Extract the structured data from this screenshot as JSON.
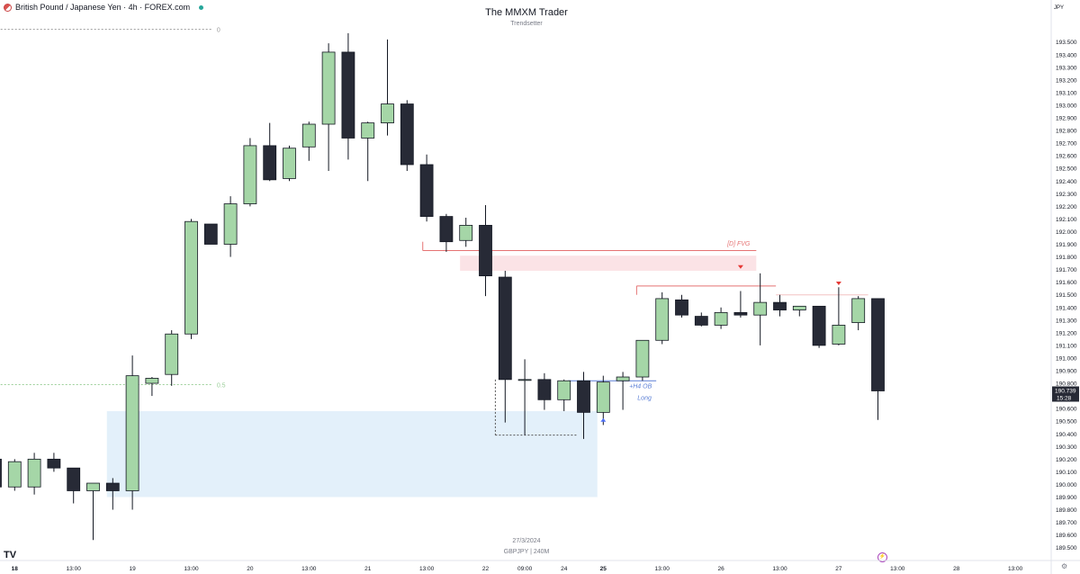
{
  "header": {
    "symbol_title": "British Pound / Japanese Yen · 4h · FOREX.com",
    "logo_icon": "flag-icon",
    "status_icon": "live-dot-icon"
  },
  "overlay": {
    "title": "The MMXM Trader",
    "subtitle": "Trendsetter",
    "watermark_date": "27/3/2024",
    "watermark_symbol": "GBPJPY | 240M",
    "brand": "TV"
  },
  "axis": {
    "currency": "JPY",
    "settings_icon": "gear-icon",
    "alert_icon": "alert-icon"
  },
  "chart_data": {
    "type": "candlestick",
    "y_ticks": [
      189.5,
      189.6,
      189.7,
      189.8,
      189.9,
      190.0,
      190.1,
      190.2,
      190.3,
      190.4,
      190.5,
      190.6,
      190.7,
      190.8,
      190.9,
      191.0,
      191.1,
      191.2,
      191.3,
      191.4,
      191.5,
      191.6,
      191.7,
      191.8,
      191.9,
      192.0,
      192.1,
      192.2,
      192.3,
      192.4,
      192.5,
      192.6,
      192.7,
      192.8,
      192.9,
      193.0,
      193.1,
      193.2,
      193.3,
      193.4,
      193.5
    ],
    "y_tick_labels": [
      "189.500",
      "189.600",
      "189.700",
      "189.800",
      "189.900",
      "190.000",
      "190.100",
      "190.200",
      "190.300",
      "190.400",
      "190.500",
      "190.600",
      "190.700",
      "190.800",
      "190.900",
      "191.000",
      "191.100",
      "191.200",
      "191.300",
      "191.400",
      "191.500",
      "191.600",
      "191.700",
      "191.800",
      "191.900",
      "192.000",
      "192.100",
      "192.200",
      "192.300",
      "192.400",
      "192.500",
      "192.600",
      "192.700",
      "192.800",
      "192.900",
      "193.000",
      "193.100",
      "193.200",
      "193.300",
      "193.400",
      "193.500"
    ],
    "x_labels": [
      {
        "bar": 1,
        "text": "18",
        "bold": true
      },
      {
        "bar": 4,
        "text": "13:00",
        "bold": false
      },
      {
        "bar": 7,
        "text": "19",
        "bold": false
      },
      {
        "bar": 10,
        "text": "13:00",
        "bold": false
      },
      {
        "bar": 13,
        "text": "20",
        "bold": false
      },
      {
        "bar": 16,
        "text": "13:00",
        "bold": false
      },
      {
        "bar": 19,
        "text": "21",
        "bold": false
      },
      {
        "bar": 22,
        "text": "13:00",
        "bold": false
      },
      {
        "bar": 25,
        "text": "22",
        "bold": false
      },
      {
        "bar": 27,
        "text": "09:00",
        "bold": false
      },
      {
        "bar": 29,
        "text": "24",
        "bold": false
      },
      {
        "bar": 31,
        "text": "25",
        "bold": true
      },
      {
        "bar": 34,
        "text": "13:00",
        "bold": false
      },
      {
        "bar": 37,
        "text": "26",
        "bold": false
      },
      {
        "bar": 40,
        "text": "13:00",
        "bold": false
      },
      {
        "bar": 43,
        "text": "27",
        "bold": false
      },
      {
        "bar": 46,
        "text": "13:00",
        "bold": false
      },
      {
        "bar": 49,
        "text": "28",
        "bold": false
      },
      {
        "bar": 52,
        "text": "13:00",
        "bold": false
      }
    ],
    "candles": [
      {
        "o": 190.2,
        "h": 190.2,
        "l": 189.95,
        "c": 189.98
      },
      {
        "o": 189.98,
        "h": 190.2,
        "l": 189.95,
        "c": 190.18
      },
      {
        "o": 189.98,
        "h": 190.25,
        "l": 189.92,
        "c": 190.2
      },
      {
        "o": 190.2,
        "h": 190.25,
        "l": 190.1,
        "c": 190.13
      },
      {
        "o": 190.13,
        "h": 190.13,
        "l": 189.85,
        "c": 189.95
      },
      {
        "o": 189.95,
        "h": 190.0,
        "l": 189.56,
        "c": 190.01
      },
      {
        "o": 190.01,
        "h": 190.05,
        "l": 189.8,
        "c": 189.95
      },
      {
        "o": 189.95,
        "h": 191.02,
        "l": 189.8,
        "c": 190.86
      },
      {
        "o": 190.8,
        "h": 190.85,
        "l": 190.7,
        "c": 190.84
      },
      {
        "o": 190.87,
        "h": 191.22,
        "l": 190.78,
        "c": 191.19
      },
      {
        "o": 191.19,
        "h": 192.1,
        "l": 191.15,
        "c": 192.08
      },
      {
        "o": 192.06,
        "h": 192.06,
        "l": 191.9,
        "c": 191.9
      },
      {
        "o": 191.9,
        "h": 192.28,
        "l": 191.8,
        "c": 192.22
      },
      {
        "o": 192.22,
        "h": 192.74,
        "l": 192.2,
        "c": 192.68
      },
      {
        "o": 192.68,
        "h": 192.86,
        "l": 192.4,
        "c": 192.41
      },
      {
        "o": 192.42,
        "h": 192.68,
        "l": 192.4,
        "c": 192.66
      },
      {
        "o": 192.67,
        "h": 192.87,
        "l": 192.56,
        "c": 192.85
      },
      {
        "o": 192.85,
        "h": 193.49,
        "l": 192.48,
        "c": 193.42
      },
      {
        "o": 193.42,
        "h": 193.57,
        "l": 192.57,
        "c": 192.74
      },
      {
        "o": 192.74,
        "h": 192.87,
        "l": 192.4,
        "c": 192.86
      },
      {
        "o": 192.86,
        "h": 193.52,
        "l": 192.76,
        "c": 193.01
      },
      {
        "o": 193.01,
        "h": 193.04,
        "l": 192.48,
        "c": 192.53
      },
      {
        "o": 192.53,
        "h": 192.61,
        "l": 192.08,
        "c": 192.12
      },
      {
        "o": 192.12,
        "h": 192.14,
        "l": 191.84,
        "c": 191.92
      },
      {
        "o": 191.93,
        "h": 192.11,
        "l": 191.88,
        "c": 192.05
      },
      {
        "o": 192.05,
        "h": 192.21,
        "l": 191.49,
        "c": 191.65
      },
      {
        "o": 191.64,
        "h": 191.69,
        "l": 190.49,
        "c": 190.83
      },
      {
        "o": 190.83,
        "h": 190.99,
        "l": 190.39,
        "c": 190.83
      },
      {
        "o": 190.83,
        "h": 190.88,
        "l": 190.59,
        "c": 190.67
      },
      {
        "o": 190.67,
        "h": 190.83,
        "l": 190.58,
        "c": 190.82
      },
      {
        "o": 190.82,
        "h": 190.89,
        "l": 190.36,
        "c": 190.57
      },
      {
        "o": 190.57,
        "h": 190.86,
        "l": 190.47,
        "c": 190.81
      },
      {
        "o": 190.82,
        "h": 190.89,
        "l": 190.59,
        "c": 190.85
      },
      {
        "o": 190.85,
        "h": 191.14,
        "l": 190.82,
        "c": 191.14
      },
      {
        "o": 191.14,
        "h": 191.52,
        "l": 191.11,
        "c": 191.47
      },
      {
        "o": 191.46,
        "h": 191.5,
        "l": 191.32,
        "c": 191.34
      },
      {
        "o": 191.33,
        "h": 191.36,
        "l": 191.25,
        "c": 191.26
      },
      {
        "o": 191.26,
        "h": 191.4,
        "l": 191.23,
        "c": 191.36
      },
      {
        "o": 191.36,
        "h": 191.53,
        "l": 191.32,
        "c": 191.34
      },
      {
        "o": 191.34,
        "h": 191.67,
        "l": 191.1,
        "c": 191.44
      },
      {
        "o": 191.44,
        "h": 191.5,
        "l": 191.33,
        "c": 191.38
      },
      {
        "o": 191.38,
        "h": 191.4,
        "l": 191.33,
        "c": 191.41
      },
      {
        "o": 191.41,
        "h": 191.41,
        "l": 191.08,
        "c": 191.1
      },
      {
        "o": 191.11,
        "h": 191.56,
        "l": 191.1,
        "c": 191.26
      },
      {
        "o": 191.28,
        "h": 191.49,
        "l": 191.22,
        "c": 191.47
      },
      {
        "o": 191.47,
        "h": 191.47,
        "l": 190.51,
        "c": 190.74
      }
    ],
    "zones": [
      {
        "name": "demand-zone",
        "bar_from": 5.7,
        "bar_to": 30.7,
        "y_low": 189.9,
        "y_high": 190.58,
        "color": "#e3f0fa"
      },
      {
        "name": "fvg-zone",
        "bar_from": 23.7,
        "bar_to": 38.8,
        "y_low": 191.69,
        "y_high": 191.81,
        "color": "#fbe3e6"
      }
    ],
    "lines": [
      {
        "name": "fvg-line",
        "bar_from": 21.8,
        "bar_to": 38.8,
        "y": 191.85,
        "color": "#e57373",
        "dash": false
      },
      {
        "name": "swing-high-line",
        "bar_from": 32.7,
        "bar_to": 39.8,
        "y": 191.57,
        "color": "#e57373",
        "dash": false
      },
      {
        "name": "swing-high-line-2",
        "bar_from": 39.8,
        "bar_to": 44.5,
        "y": 191.5,
        "color": "#f4c2c2",
        "dash": false
      },
      {
        "name": "ob-line",
        "bar_from": 29.2,
        "bar_to": 33.7,
        "y": 190.82,
        "color": "#5b7fd6",
        "dash": false
      },
      {
        "name": "low-dotted-line",
        "bar_from": 25.5,
        "bar_to": 29.7,
        "y": 190.39,
        "color": "#555555",
        "dash": true
      },
      {
        "name": "fib-0-line",
        "bar_from": -1,
        "bar_to": 11.1,
        "y": 193.6,
        "color": "#999999",
        "dash": true
      },
      {
        "name": "fib-05-line",
        "bar_from": -1,
        "bar_to": 11.1,
        "y": 190.79,
        "color": "#9ccf9a",
        "dash": true
      }
    ],
    "annotations": [
      {
        "name": "fvg-label",
        "text": "[D] FVG",
        "bar": 37.9,
        "y": 191.89,
        "color": "#e57373"
      },
      {
        "name": "ob-label",
        "text": "+H4 OB",
        "bar": 32.9,
        "y": 190.76,
        "color": "#5b7fd6"
      },
      {
        "name": "long-label",
        "text": "Long",
        "bar": 33.1,
        "y": 190.67,
        "color": "#5b7fd6"
      },
      {
        "name": "fib-0-label",
        "text": "0",
        "bar": 11.3,
        "y": 193.58,
        "color": "#999999"
      },
      {
        "name": "fib-05-label",
        "text": "0.5",
        "bar": 11.3,
        "y": 190.77,
        "color": "#9ccf9a"
      }
    ],
    "markers": [
      {
        "name": "sell-marker",
        "bar": 38.0,
        "y": 191.72,
        "shape": "down",
        "color": "#e53935"
      },
      {
        "name": "sell-marker-2",
        "bar": 43.0,
        "y": 191.59,
        "shape": "down",
        "color": "#e53935"
      },
      {
        "name": "buy-marker",
        "bar": 31.0,
        "y": 190.51,
        "shape": "up",
        "color": "#4c6ef5"
      }
    ],
    "last_price": {
      "value": "190.739",
      "countdown": "15:28",
      "y": 190.74
    },
    "colors": {
      "bull": "#a5d6a7",
      "bear": "#272a36",
      "border": "#131722",
      "axis_text": "#131722"
    }
  }
}
